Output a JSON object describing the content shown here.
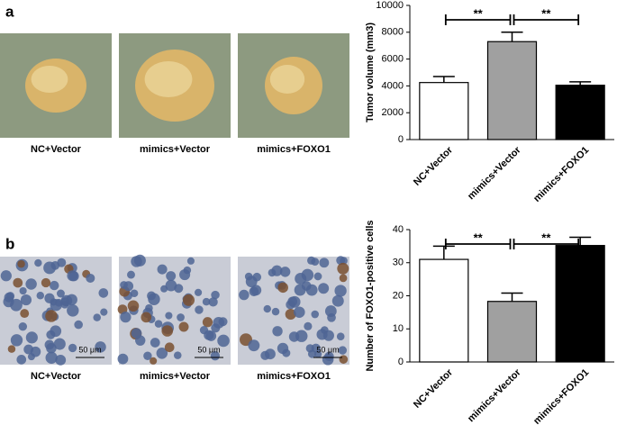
{
  "panel_labels": [
    "a",
    "b"
  ],
  "photo_captions": {
    "a": [
      "NC+Vector",
      "mimics+Vector",
      "mimics+FOXO1"
    ],
    "b": [
      "NC+Vector",
      "mimics+Vector",
      "mimics+FOXO1"
    ]
  },
  "scale_bars": [
    "50 μm",
    "50 μm",
    "50 μm"
  ],
  "chart_data": [
    {
      "type": "bar",
      "y_label": "Tumor volume (mm3)",
      "categories": [
        "NC+Vector",
        "mimics+Vector",
        "mimics+FOXO1"
      ],
      "values": [
        4250,
        7300,
        4050
      ],
      "errors": [
        450,
        700,
        250
      ],
      "colors": [
        "#ffffff",
        "#a0a0a0",
        "#000000"
      ],
      "ylim": [
        0,
        10000
      ],
      "yticks": [
        0,
        2000,
        4000,
        6000,
        8000,
        10000
      ],
      "annotations": [
        "**",
        "**"
      ]
    },
    {
      "type": "bar",
      "y_label": "Number of FOXO1-positive cells",
      "categories": [
        "NC+Vector",
        "mimics+Vector",
        "mimics+FOXO1"
      ],
      "values": [
        31,
        18.3,
        35.2
      ],
      "errors": [
        4,
        2.5,
        2.5
      ],
      "colors": [
        "#ffffff",
        "#a0a0a0",
        "#000000"
      ],
      "ylim": [
        0,
        40
      ],
      "yticks": [
        0,
        10,
        20,
        30,
        40
      ],
      "annotations": [
        "**",
        "**"
      ]
    }
  ]
}
